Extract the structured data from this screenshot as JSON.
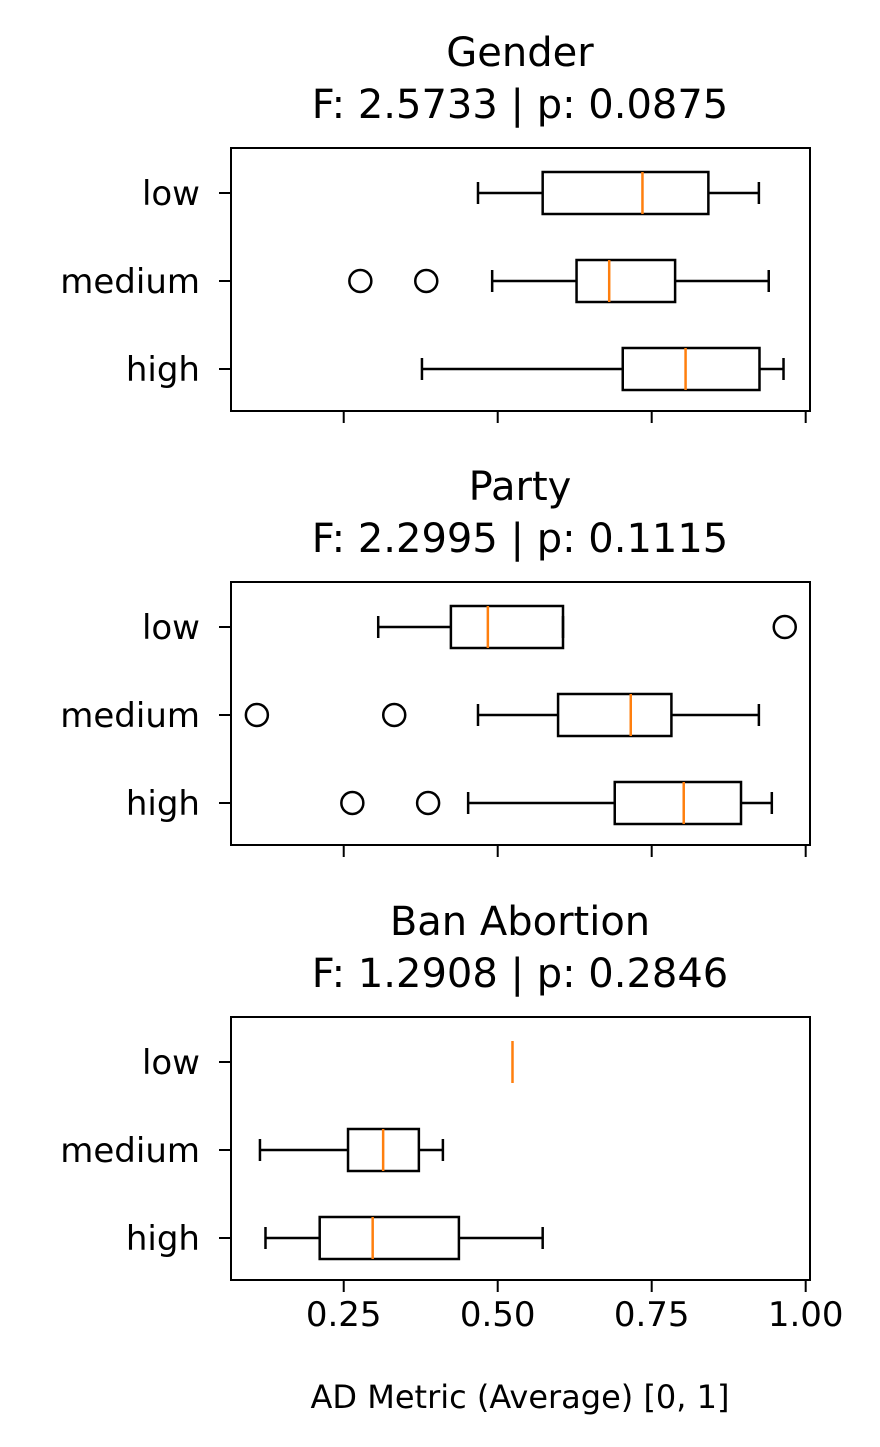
{
  "chart_data": [
    {
      "type": "boxplot",
      "title": "Gender",
      "subtitle": "F: 2.5733 | p: 0.0875",
      "categories": [
        "low",
        "medium",
        "high"
      ],
      "xlim": [
        0.067,
        1.007
      ],
      "xticks": [
        0.25,
        0.5,
        0.75,
        1.0
      ],
      "xtick_labels_shown": false,
      "boxes": [
        {
          "whisker_low": 0.468,
          "q1": 0.573,
          "median": 0.735,
          "q3": 0.842,
          "whisker_high": 0.924,
          "outliers": []
        },
        {
          "whisker_low": 0.491,
          "q1": 0.628,
          "median": 0.681,
          "q3": 0.788,
          "whisker_high": 0.94,
          "outliers": [
            0.277,
            0.384
          ]
        },
        {
          "whisker_low": 0.377,
          "q1": 0.703,
          "median": 0.805,
          "q3": 0.925,
          "whisker_high": 0.964,
          "outliers": []
        }
      ]
    },
    {
      "type": "boxplot",
      "title": "Party",
      "subtitle": "F: 2.2995 | p: 0.1115",
      "categories": [
        "low",
        "medium",
        "high"
      ],
      "xlim": [
        0.067,
        1.007
      ],
      "xticks": [
        0.25,
        0.5,
        0.75,
        1.0
      ],
      "xtick_labels_shown": false,
      "boxes": [
        {
          "whisker_low": 0.306,
          "q1": 0.424,
          "median": 0.484,
          "q3": 0.606,
          "whisker_high": 0.606,
          "outliers": [
            0.966
          ]
        },
        {
          "whisker_low": 0.468,
          "q1": 0.598,
          "median": 0.716,
          "q3": 0.782,
          "whisker_high": 0.924,
          "outliers": [
            0.109,
            0.332
          ]
        },
        {
          "whisker_low": 0.452,
          "q1": 0.69,
          "median": 0.802,
          "q3": 0.895,
          "whisker_high": 0.945,
          "outliers": [
            0.264,
            0.387
          ]
        }
      ]
    },
    {
      "type": "boxplot",
      "title": "Ban Abortion",
      "subtitle": "F: 1.2908 | p: 0.2846",
      "categories": [
        "low",
        "medium",
        "high"
      ],
      "xlim": [
        0.067,
        1.007
      ],
      "xticks": [
        0.25,
        0.5,
        0.75,
        1.0
      ],
      "xtick_labels": [
        "0.25",
        "0.50",
        "0.75",
        "1.00"
      ],
      "xtick_labels_shown": true,
      "xlabel": "AD Metric (Average) [0, 1]",
      "boxes": [
        {
          "whisker_low": 0.524,
          "q1": 0.524,
          "median": 0.524,
          "q3": 0.524,
          "whisker_high": 0.524,
          "outliers": []
        },
        {
          "whisker_low": 0.114,
          "q1": 0.257,
          "median": 0.314,
          "q3": 0.372,
          "whisker_high": 0.411,
          "outliers": []
        },
        {
          "whisker_low": 0.123,
          "q1": 0.211,
          "median": 0.297,
          "q3": 0.437,
          "whisker_high": 0.573,
          "outliers": []
        }
      ]
    }
  ],
  "colors": {
    "box": "#000000",
    "median": "#ff7f0e",
    "background": "#ffffff"
  }
}
